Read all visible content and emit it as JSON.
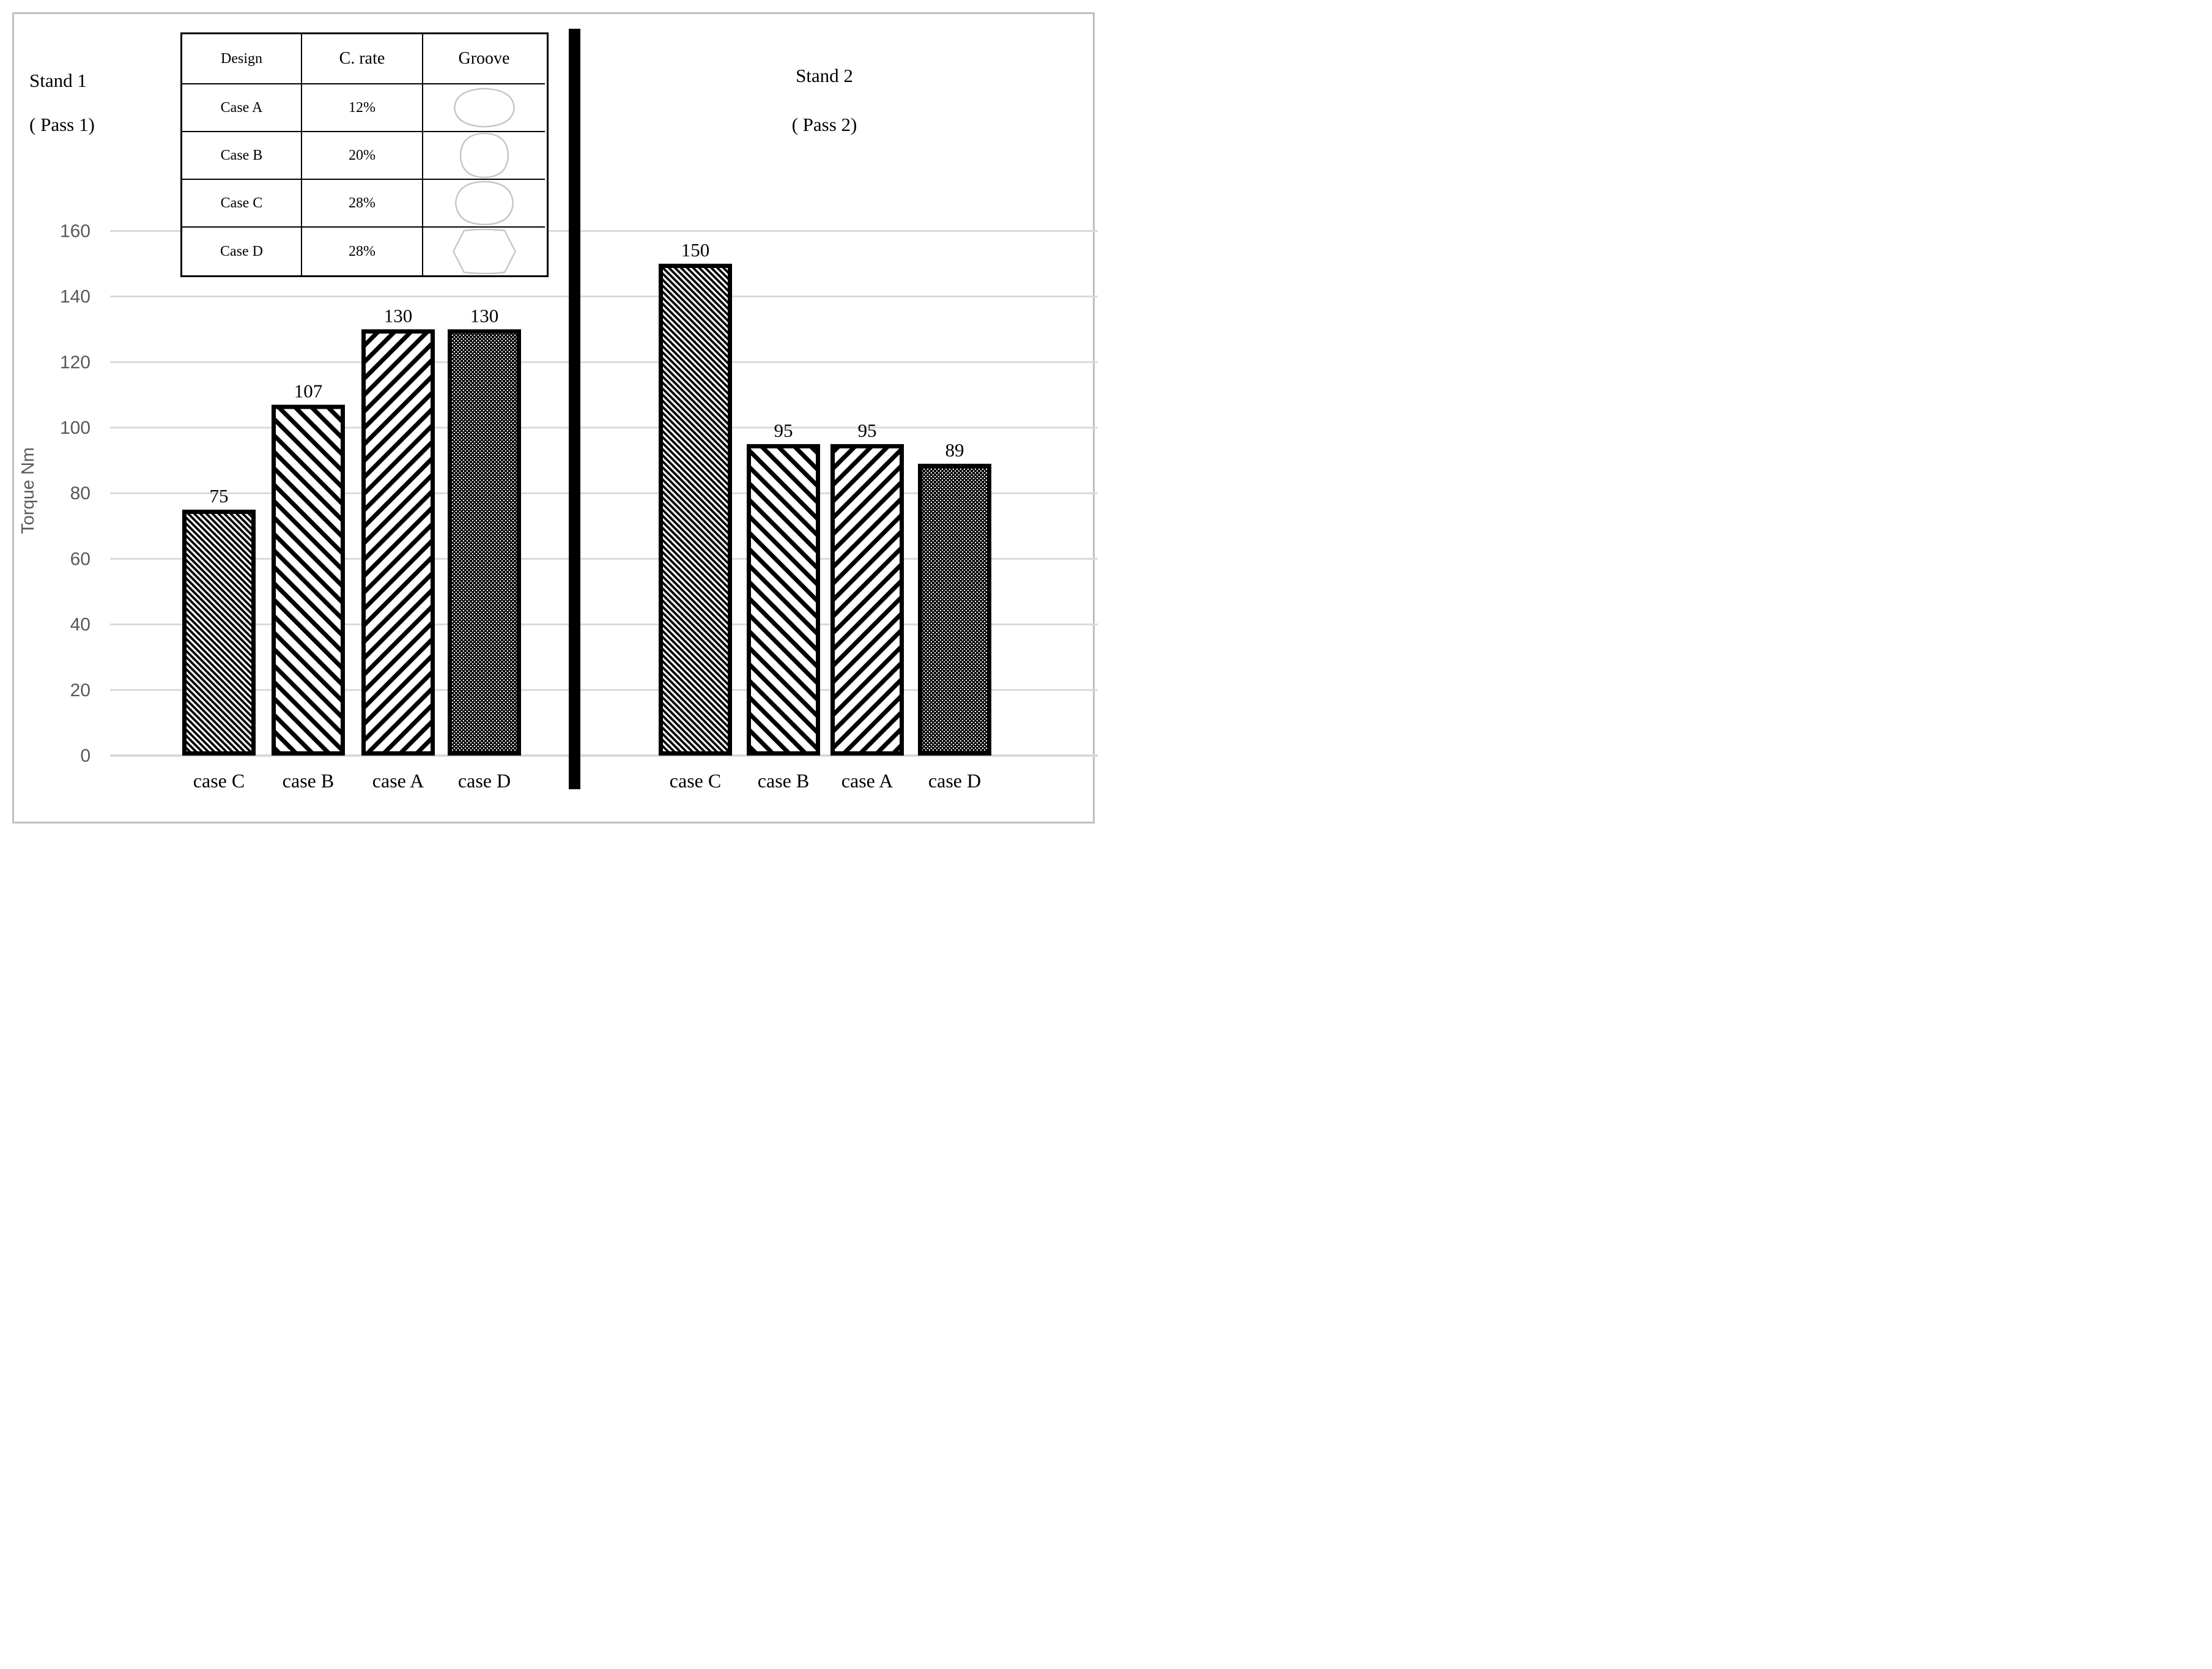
{
  "figure": {
    "left_title": "Stand 1\n( Pass 1)",
    "right_title": "Stand 2\n( Pass 2)"
  },
  "table": {
    "headers": [
      "Design",
      "C. rate",
      "Groove"
    ],
    "rows": [
      {
        "design": "Case A",
        "c_rate": "12%",
        "groove_shape": "oval-lens"
      },
      {
        "design": "Case B",
        "c_rate": "20%",
        "groove_shape": "circle"
      },
      {
        "design": "Case C",
        "c_rate": "28%",
        "groove_shape": "round-lens"
      },
      {
        "design": "Case D",
        "c_rate": "28%",
        "groove_shape": "hexagon"
      }
    ]
  },
  "chart_data": {
    "type": "bar",
    "title": "",
    "xlabel": "",
    "ylabel": "Torque Nm",
    "ylim": [
      0,
      160
    ],
    "yticks": [
      0,
      20,
      40,
      60,
      80,
      100,
      120,
      140,
      160
    ],
    "grid": true,
    "legend_position": "none",
    "groups": [
      {
        "title": "Stand 1 ( Pass 1)",
        "categories": [
          "case C",
          "case B",
          "case A",
          "case D"
        ],
        "values": [
          75,
          107,
          130,
          130
        ],
        "patterns": [
          "dense-down-diagonal",
          "wide-down-diagonal",
          "wide-up-diagonal",
          "dots"
        ]
      },
      {
        "title": "Stand 2 ( Pass 2)",
        "categories": [
          "case C",
          "case B",
          "case A",
          "case D"
        ],
        "values": [
          150,
          95,
          95,
          89
        ],
        "patterns": [
          "dense-down-diagonal",
          "wide-down-diagonal",
          "wide-up-diagonal",
          "dots"
        ]
      }
    ]
  },
  "colors": {
    "bar_fill": "#000000",
    "axis_text": "#595959",
    "gridline": "#d9d9d9",
    "figure_border": "#c0c0c0",
    "groove_outline": "#c6c6c6",
    "divider": "#000000",
    "background": "#ffffff"
  }
}
